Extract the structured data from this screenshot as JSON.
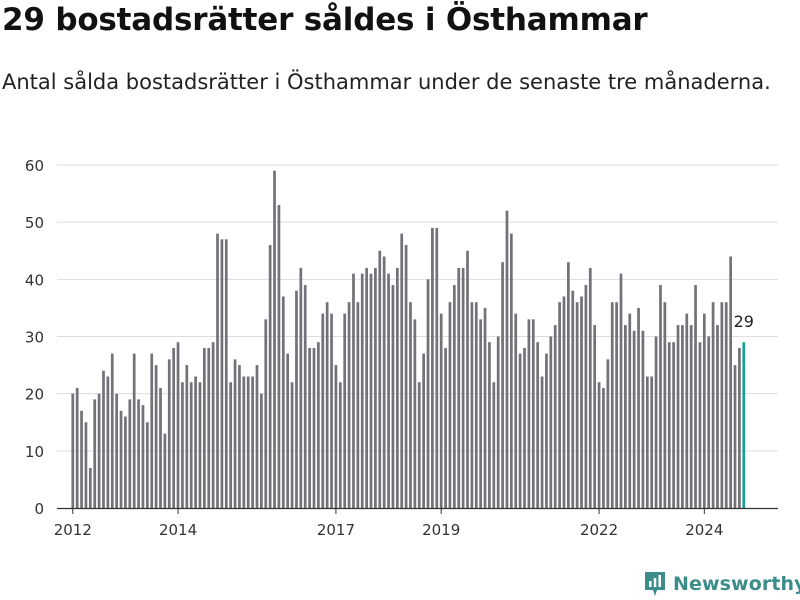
{
  "header": {
    "title": "29 bostadsrätter såldes i Östhammar",
    "subtitle": "Antal sålda bostadsrätter i Östhammar under de senaste tre månaderna."
  },
  "brand": {
    "name": "Newsworthy"
  },
  "colors": {
    "bar": "#737278",
    "highlight": "#1a9b95",
    "grid": "#dddddd",
    "axis": "#333333",
    "brand": "#3c8d8a"
  },
  "chart_data": {
    "type": "bar",
    "title": "29 bostadsrätter såldes i Östhammar",
    "subtitle": "Antal sålda bostadsrätter i Östhammar under de senaste tre månaderna.",
    "xlabel": "",
    "ylabel": "",
    "ylim": [
      0,
      60
    ],
    "yticks": [
      "0",
      "10",
      "20",
      "30",
      "40",
      "50",
      "60"
    ],
    "xlim": [
      2011.7,
      2025.4
    ],
    "xticks": [
      {
        "label": "2012",
        "value": 2012
      },
      {
        "label": "2014",
        "value": 2014
      },
      {
        "label": "2017",
        "value": 2017
      },
      {
        "label": "2019",
        "value": 2019
      },
      {
        "label": "2022",
        "value": 2022
      },
      {
        "label": "2024",
        "value": 2024
      }
    ],
    "grid": true,
    "start_year": 2012,
    "period_months": 1,
    "values": [
      20,
      21,
      17,
      15,
      7,
      19,
      20,
      24,
      23,
      27,
      20,
      17,
      16,
      19,
      27,
      19,
      18,
      15,
      27,
      25,
      21,
      13,
      26,
      28,
      29,
      22,
      25,
      22,
      23,
      22,
      28,
      28,
      29,
      48,
      47,
      47,
      22,
      26,
      25,
      23,
      23,
      23,
      25,
      20,
      33,
      46,
      59,
      53,
      37,
      27,
      22,
      38,
      42,
      39,
      28,
      28,
      29,
      34,
      36,
      34,
      25,
      22,
      34,
      36,
      41,
      36,
      41,
      42,
      41,
      42,
      45,
      44,
      41,
      39,
      42,
      48,
      46,
      36,
      33,
      22,
      27,
      40,
      49,
      49,
      34,
      28,
      36,
      39,
      42,
      42,
      45,
      36,
      36,
      33,
      35,
      29,
      22,
      30,
      43,
      52,
      48,
      34,
      27,
      28,
      33,
      33,
      29,
      23,
      27,
      30,
      32,
      36,
      37,
      43,
      38,
      36,
      37,
      39,
      42,
      32,
      22,
      21,
      26,
      36,
      36,
      41,
      32,
      34,
      31,
      35,
      31,
      23,
      23,
      30,
      39,
      36,
      29,
      29,
      32,
      32,
      34,
      32,
      39,
      29,
      34,
      30,
      36,
      32,
      36,
      36,
      44,
      25,
      28,
      29
    ],
    "highlight_last": true,
    "annotation": {
      "label": "29",
      "value": 29
    }
  }
}
